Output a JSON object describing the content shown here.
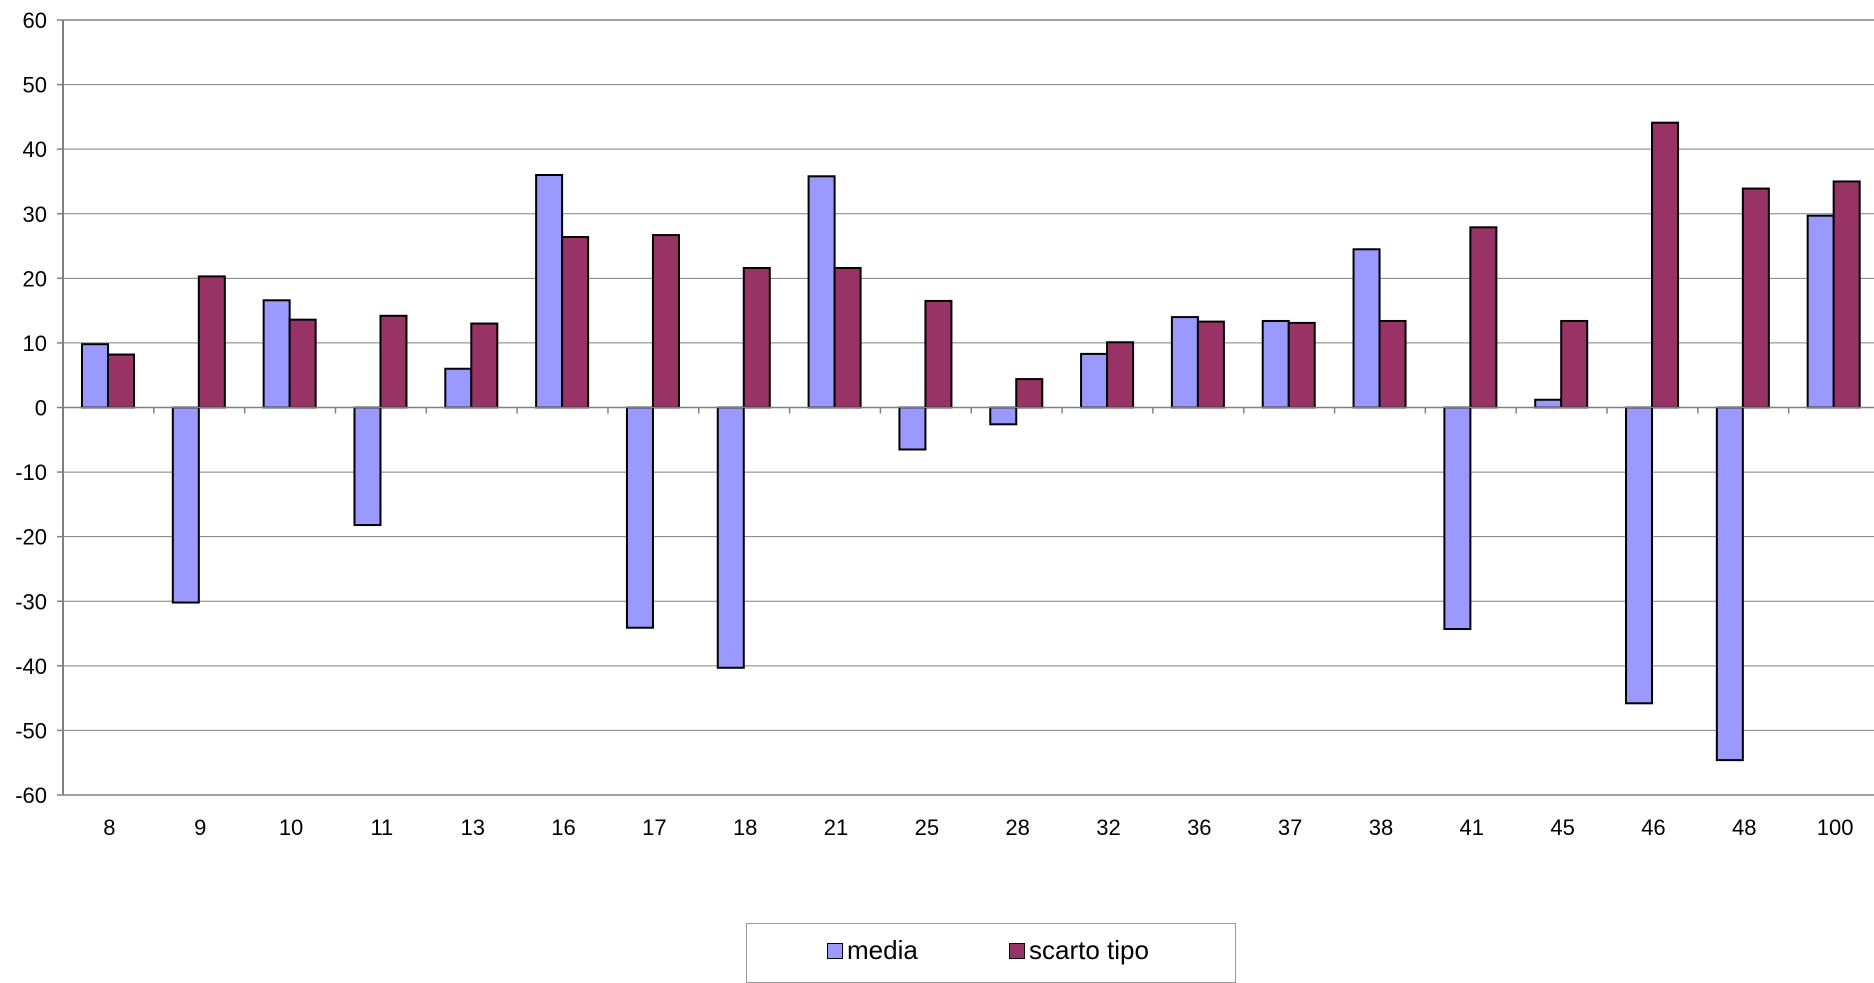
{
  "chart_data": {
    "type": "bar",
    "title": "",
    "xlabel": "",
    "ylabel": "",
    "ylim": [
      -60,
      60
    ],
    "yticks": [
      60,
      50,
      40,
      30,
      20,
      10,
      0,
      -10,
      -20,
      -30,
      -40,
      -50,
      -60
    ],
    "grid": true,
    "legend_position": "bottom",
    "categories": [
      "8",
      "9",
      "10",
      "11",
      "13",
      "16",
      "17",
      "18",
      "21",
      "25",
      "28",
      "32",
      "36",
      "37",
      "38",
      "41",
      "45",
      "46",
      "48",
      "100"
    ],
    "series": [
      {
        "name": "media",
        "color": "#9999ff",
        "values": [
          9.8,
          -30.2,
          16.6,
          -18.2,
          6.0,
          36.0,
          -34.1,
          -40.3,
          35.8,
          -6.5,
          -2.6,
          8.3,
          14.0,
          13.4,
          24.5,
          -34.3,
          1.2,
          -45.8,
          -54.6,
          29.7
        ]
      },
      {
        "name": "scarto tipo",
        "color": "#993366",
        "values": [
          8.2,
          20.3,
          13.6,
          14.2,
          13.0,
          26.4,
          26.7,
          21.6,
          21.6,
          16.5,
          4.4,
          10.1,
          13.3,
          13.1,
          13.4,
          27.9,
          13.4,
          44.1,
          33.9,
          35.0
        ]
      }
    ]
  }
}
